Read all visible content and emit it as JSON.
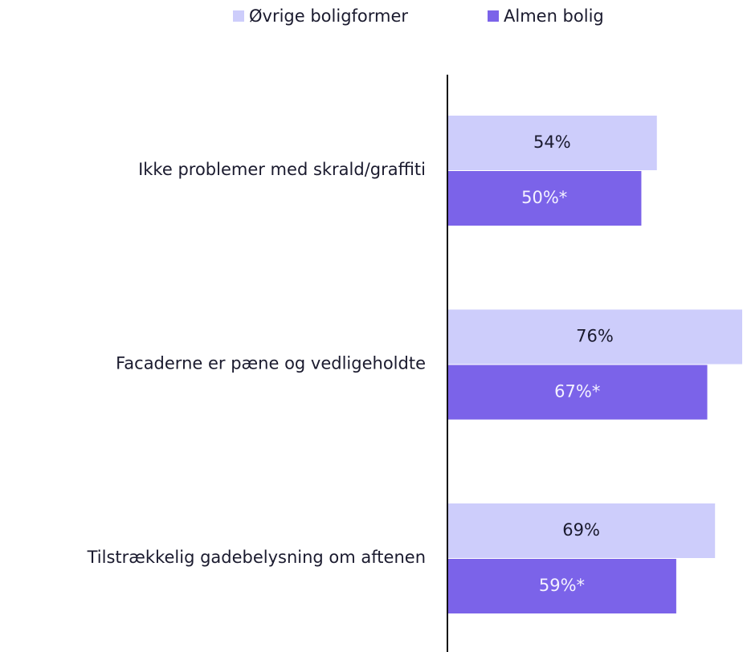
{
  "chart_data": {
    "type": "bar",
    "orientation": "horizontal",
    "categories": [
      "Ikke problemer med skrald/graffiti",
      "Facaderne er pæne og vedligeholdte",
      "Tilstrækkelig gadebelysning om aftenen"
    ],
    "series": [
      {
        "name": "Øvrige boligformer",
        "color": "#cdcdfb",
        "values": [
          54,
          76,
          69
        ],
        "value_labels": [
          "54%",
          "76%",
          "69%"
        ]
      },
      {
        "name": "Almen bolig",
        "color": "#7b63e9",
        "values": [
          50,
          67,
          59
        ],
        "value_labels": [
          "50%*",
          "67%*",
          "59%*"
        ]
      }
    ],
    "xlim": [
      0,
      76
    ],
    "legend": "top"
  }
}
